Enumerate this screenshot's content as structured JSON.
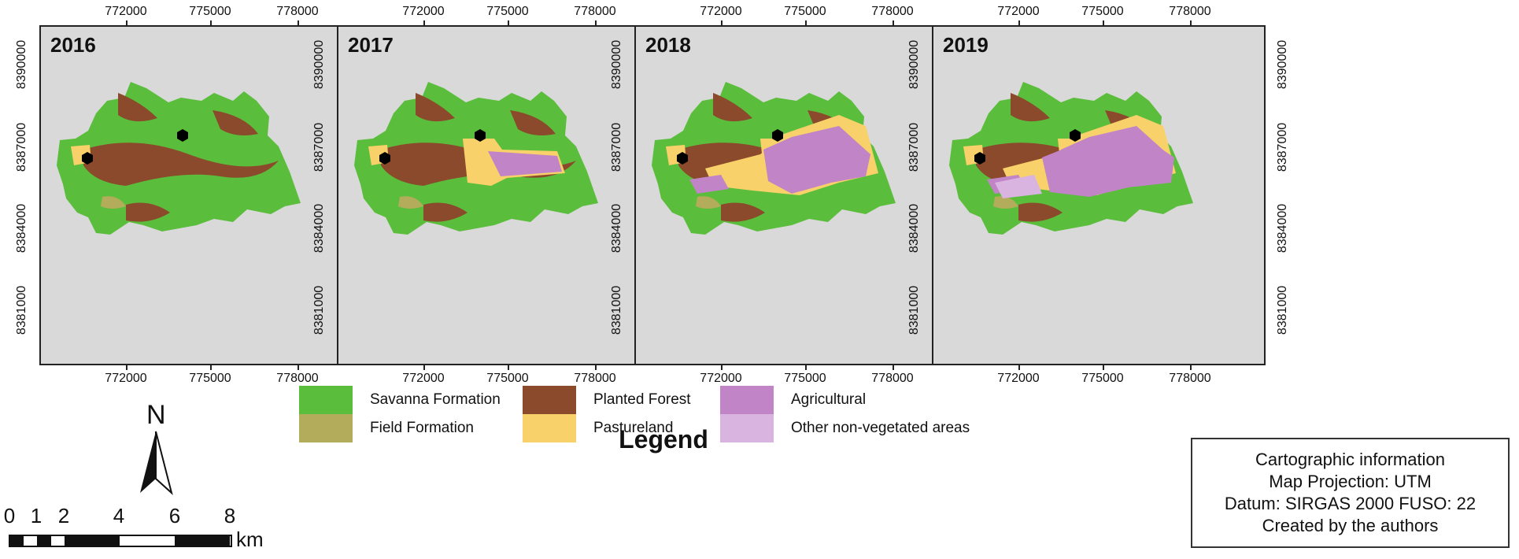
{
  "panels": [
    {
      "year": "2016"
    },
    {
      "year": "2017"
    },
    {
      "year": "2018"
    },
    {
      "year": "2019"
    }
  ],
  "axes": {
    "x_ticks": [
      "772000",
      "775000",
      "778000"
    ],
    "y_ticks": [
      "8390000",
      "8387000",
      "8384000",
      "8381000"
    ]
  },
  "north_arrow": {
    "label": "N"
  },
  "scale_bar": {
    "labels": [
      "0",
      "1",
      "2",
      "4",
      "6",
      "8"
    ],
    "unit": "km"
  },
  "legend": {
    "title": "Legend",
    "items": [
      {
        "label": "Savanna Formation",
        "color": "#5bbd3c"
      },
      {
        "label": "Field Formation",
        "color": "#b3ac5a"
      },
      {
        "label": "Planted Forest",
        "color": "#8b4a2b"
      },
      {
        "label": "Pastureland",
        "color": "#f8d16a"
      },
      {
        "label": "Agricultural",
        "color": "#c184c6"
      },
      {
        "label": "Other non-vegetated areas",
        "color": "#d9b4e0"
      }
    ]
  },
  "cartographic_info": [
    "Cartographic information",
    "Map Projection: UTM",
    "Datum: SIRGAS 2000 FUSO: 22",
    "Created by the authors"
  ],
  "colors": {
    "background": "#d9d9d9",
    "marker": "#000000"
  }
}
